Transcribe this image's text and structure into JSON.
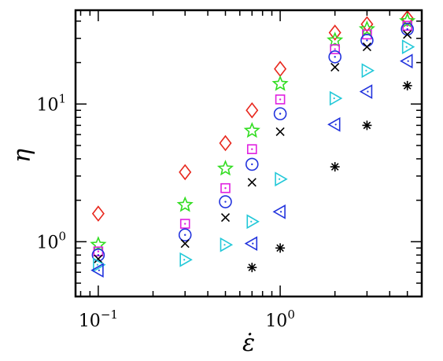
{
  "chart_data": {
    "type": "scatter",
    "title": "",
    "xlabel": "ε̇",
    "ylabel": "η",
    "xscale": "log",
    "yscale": "log",
    "xlim": [
      0.075,
      6.0
    ],
    "ylim": [
      0.4,
      48
    ],
    "grid": false,
    "x_ticks": [
      {
        "value": 0.1,
        "base": "10",
        "exp": "−1"
      },
      {
        "value": 1,
        "base": "10",
        "exp": "0"
      }
    ],
    "y_ticks": [
      {
        "value": 1,
        "base": "10",
        "exp": "0"
      },
      {
        "value": 10,
        "base": "10",
        "exp": "1"
      }
    ],
    "series": [
      {
        "marker": "diamond",
        "color": "#e8281e",
        "x": [
          0.1,
          0.3,
          0.5,
          0.7,
          1,
          2,
          3,
          5
        ],
        "y": [
          1.6,
          3.2,
          5.2,
          9.0,
          18,
          33,
          38,
          42
        ]
      },
      {
        "marker": "star",
        "color": "#33dd22",
        "x": [
          0.1,
          0.3,
          0.5,
          0.7,
          1,
          2,
          3,
          5
        ],
        "y": [
          0.95,
          1.85,
          3.4,
          6.4,
          14,
          29,
          35,
          40
        ]
      },
      {
        "marker": "square-dot",
        "color": "#e020e0",
        "x": [
          0.1,
          0.3,
          0.5,
          0.7,
          1,
          2,
          3,
          5
        ],
        "y": [
          0.85,
          1.35,
          2.45,
          4.7,
          10.8,
          25,
          32,
          37
        ]
      },
      {
        "marker": "circle-dot",
        "color": "#2233dd",
        "x": [
          0.1,
          0.3,
          0.5,
          0.7,
          1,
          2,
          3,
          5
        ],
        "y": [
          0.8,
          1.12,
          1.95,
          3.65,
          8.5,
          22,
          29,
          35
        ]
      },
      {
        "marker": "x",
        "color": "#000000",
        "x": [
          0.1,
          0.3,
          0.5,
          0.7,
          1,
          2,
          3,
          5
        ],
        "y": [
          0.75,
          0.97,
          1.5,
          2.7,
          6.3,
          18.5,
          26,
          32
        ]
      },
      {
        "marker": "triangle-right",
        "color": "#22c8d8",
        "x": [
          0.1,
          0.3,
          0.5,
          0.7,
          1,
          2,
          3,
          5
        ],
        "y": [
          0.68,
          0.74,
          0.95,
          1.4,
          2.85,
          11,
          17.5,
          26
        ]
      },
      {
        "marker": "triangle-left",
        "color": "#2233dd",
        "x": [
          0.1,
          0.7,
          1,
          2,
          3,
          5
        ],
        "y": [
          0.62,
          0.97,
          1.65,
          7.1,
          12.3,
          20.5
        ]
      },
      {
        "marker": "asterisk",
        "color": "#000000",
        "x": [
          0.7,
          1,
          2,
          3,
          5
        ],
        "y": [
          0.65,
          0.9,
          3.5,
          7.0,
          13.6
        ]
      }
    ]
  }
}
